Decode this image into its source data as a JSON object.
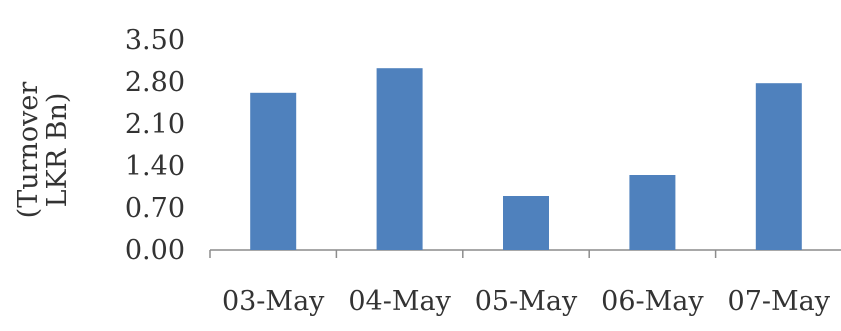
{
  "chart_data": {
    "type": "bar",
    "title": "",
    "xlabel": "",
    "ylabel_lines": [
      "(Turnover",
      "LKR Bn)"
    ],
    "categories": [
      "03-May",
      "04-May",
      "05-May",
      "06-May",
      "07-May"
    ],
    "values": [
      2.62,
      3.03,
      0.9,
      1.25,
      2.78
    ],
    "ylim": [
      0,
      3.5
    ],
    "yticks": [
      "0.00",
      "0.70",
      "1.40",
      "2.10",
      "2.80",
      "3.50"
    ],
    "bar_color": "#4f81bd",
    "grid": false,
    "legend": "none"
  }
}
